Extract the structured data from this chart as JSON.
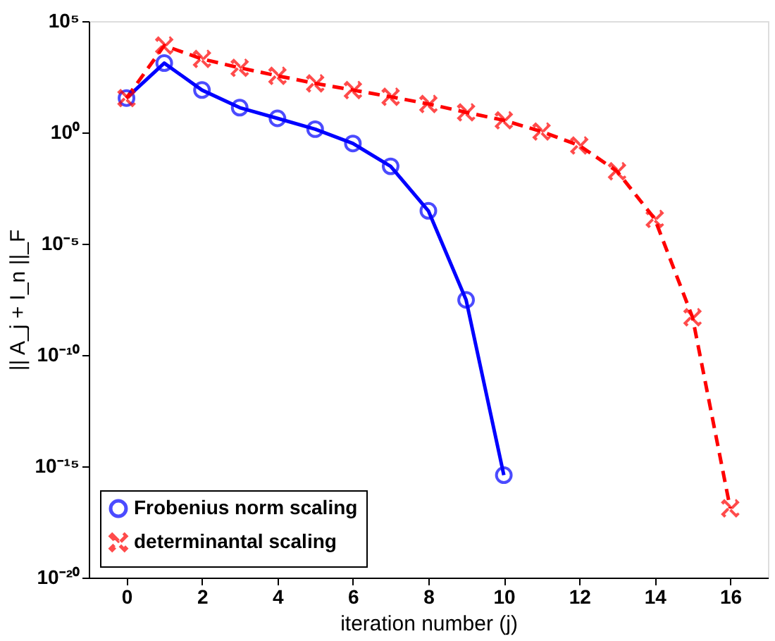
{
  "chart_data": {
    "type": "line",
    "xlabel": "iteration number (j)",
    "ylabel": "|| A_j + I_n ||_F",
    "log": "y",
    "grid": false,
    "legend": "bottom left",
    "xlim": [
      -1,
      17
    ],
    "xticks": [
      0,
      2,
      4,
      6,
      8,
      10,
      12,
      14,
      16
    ],
    "ylim": [
      1e-20,
      100000.0
    ],
    "yticks": [
      {
        "value": 1e-20,
        "label": "10⁻²⁰"
      },
      {
        "value": 1e-15,
        "label": "10⁻¹⁵"
      },
      {
        "value": 1e-10,
        "label": "10⁻¹⁰"
      },
      {
        "value": 1e-05,
        "label": "10⁻⁵"
      },
      {
        "value": 1,
        "label": "10⁰"
      },
      {
        "value": 100000.0,
        "label": "10⁵"
      }
    ],
    "series": [
      {
        "name": "Frobenius norm scaling",
        "color": "#0000ff",
        "marker": "circle",
        "line_style": "solid",
        "x": [
          0,
          1,
          2,
          3,
          4,
          5,
          6,
          7,
          8,
          9,
          10
        ],
        "values": [
          35,
          1300.0,
          80,
          13,
          4.3,
          1.4,
          0.32,
          0.03,
          0.0003,
          3e-08,
          4e-16
        ]
      },
      {
        "name": "determinantal scaling",
        "color": "#ff0000",
        "marker": "cross",
        "line_style": "dashed",
        "x": [
          0,
          1,
          2,
          3,
          4,
          5,
          6,
          7,
          8,
          9,
          10,
          11,
          12,
          13,
          14,
          15,
          16
        ],
        "values": [
          35,
          8000.0,
          2000.0,
          800.0,
          350.0,
          160.0,
          80,
          40,
          19,
          8,
          3.5,
          1.1,
          0.26,
          0.018,
          0.00013,
          5e-09,
          1.3e-17
        ]
      }
    ]
  }
}
